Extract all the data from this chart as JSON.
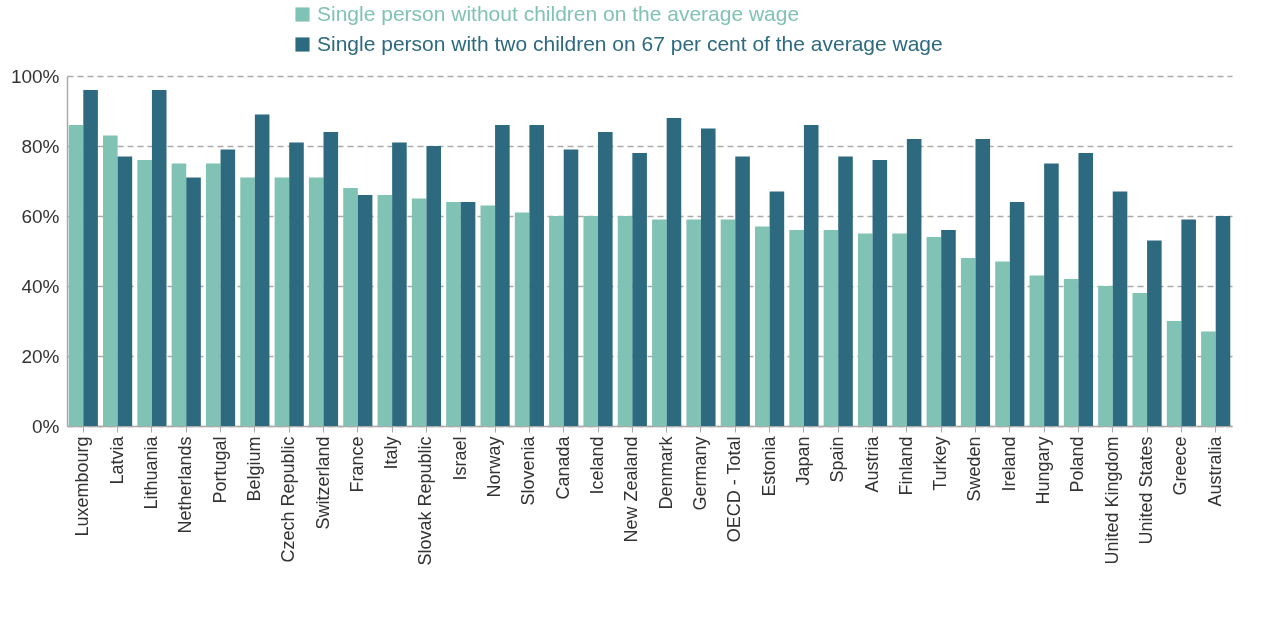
{
  "chart_data": {
    "type": "bar",
    "categories": [
      "Luxembourg",
      "Latvia",
      "Lithuania",
      "Netherlands",
      "Portugal",
      "Belgium",
      "Czech Republic",
      "Switzerland",
      "France",
      "Italy",
      "Slovak Republic",
      "Israel",
      "Norway",
      "Slovenia",
      "Canada",
      "Iceland",
      "New Zealand",
      "Denmark",
      "Germany",
      "OECD - Total",
      "Estonia",
      "Japan",
      "Spain",
      "Austria",
      "Finland",
      "Turkey",
      "Sweden",
      "Ireland",
      "Hungary",
      "Poland",
      "United Kingdom",
      "United States",
      "Greece",
      "Australia"
    ],
    "series": [
      {
        "name": "Single person without children on the average wage",
        "color": "#80c2b4",
        "values": [
          86,
          83,
          76,
          75,
          75,
          71,
          71,
          71,
          68,
          66,
          65,
          64,
          63,
          61,
          60,
          60,
          60,
          59,
          59,
          59,
          57,
          56,
          56,
          55,
          55,
          54,
          48,
          47,
          43,
          42,
          40,
          38,
          30,
          27
        ]
      },
      {
        "name": "Single person with two children on 67 per cent of the average wage",
        "color": "#2d6a80",
        "values": [
          96,
          77,
          96,
          71,
          79,
          89,
          81,
          84,
          66,
          81,
          80,
          64,
          86,
          86,
          79,
          84,
          78,
          88,
          85,
          77,
          67,
          86,
          77,
          76,
          82,
          56,
          82,
          64,
          75,
          78,
          67,
          53,
          59,
          60
        ]
      }
    ],
    "ylim": [
      0,
      100
    ],
    "yticks": [
      {
        "value": 0,
        "label": "0%"
      },
      {
        "value": 20,
        "label": "20%"
      },
      {
        "value": 40,
        "label": "40%"
      },
      {
        "value": 60,
        "label": "60%"
      },
      {
        "value": 80,
        "label": "80%"
      },
      {
        "value": 100,
        "label": "100%"
      }
    ],
    "grid": "y",
    "legend": "top"
  }
}
